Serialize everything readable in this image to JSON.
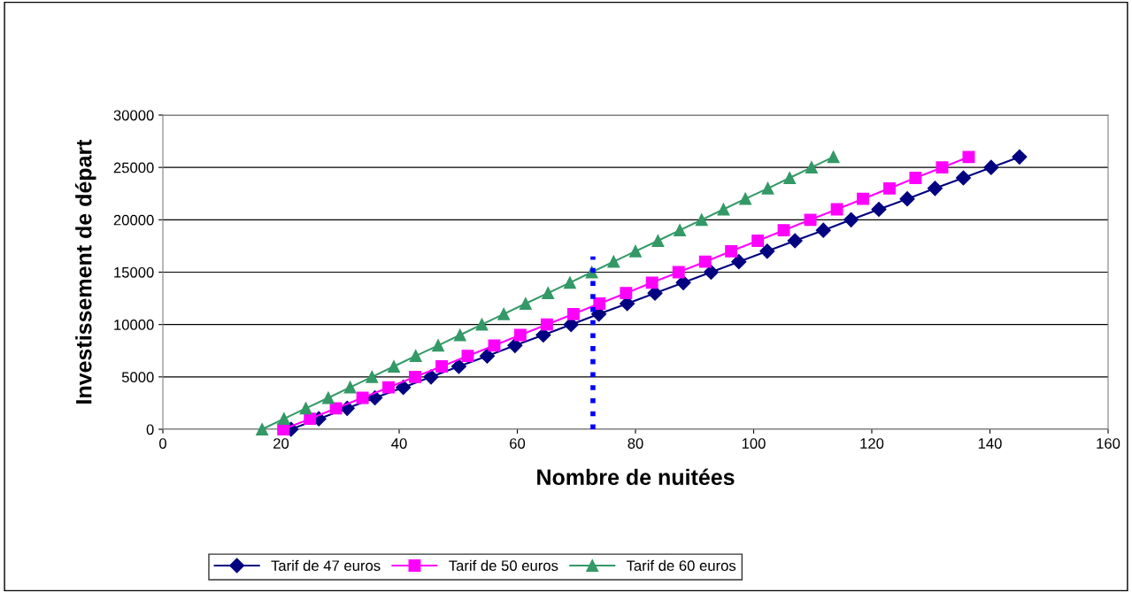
{
  "chart_data": {
    "type": "line",
    "xlabel": "Nombre de nuitées",
    "ylabel": "Investissement de départ",
    "xlim": [
      0,
      160
    ],
    "xticks": [
      0,
      20,
      40,
      60,
      80,
      100,
      120,
      140,
      160
    ],
    "ylim": [
      0,
      30000
    ],
    "yticks": [
      0,
      5000,
      10000,
      15000,
      20000,
      25000,
      30000
    ],
    "grid": "y",
    "legend": "bottom",
    "series": [
      {
        "name": "Tarif de 47 euros",
        "color": "#000080",
        "marker": "diamond",
        "x": [
          21.7,
          26.4,
          31.2,
          35.9,
          40.7,
          45.4,
          50.1,
          54.9,
          59.6,
          64.4,
          69.1,
          73.8,
          78.6,
          83.3,
          88.1,
          92.8,
          97.5,
          102.3,
          107.0,
          111.8,
          116.5,
          121.2,
          126.0,
          130.7,
          135.5,
          140.2,
          145.0
        ],
        "values": [
          0,
          1000,
          2000,
          3000,
          4000,
          5000,
          6000,
          7000,
          8000,
          9000,
          10000,
          11000,
          12000,
          13000,
          14000,
          15000,
          16000,
          17000,
          18000,
          19000,
          20000,
          21000,
          22000,
          23000,
          24000,
          25000,
          26000
        ]
      },
      {
        "name": "Tarif de 50 euros",
        "color": "#ff00ff",
        "marker": "square",
        "x": [
          20.4,
          24.9,
          29.3,
          33.8,
          38.2,
          42.7,
          47.2,
          51.6,
          56.1,
          60.5,
          65.0,
          69.5,
          73.9,
          78.4,
          82.8,
          87.3,
          91.8,
          96.2,
          100.7,
          105.1,
          109.6,
          114.1,
          118.5,
          123.0,
          127.4,
          131.9,
          136.4
        ],
        "values": [
          0,
          1000,
          2000,
          3000,
          4000,
          5000,
          6000,
          7000,
          8000,
          9000,
          10000,
          11000,
          12000,
          13000,
          14000,
          15000,
          16000,
          17000,
          18000,
          19000,
          20000,
          21000,
          22000,
          23000,
          24000,
          25000,
          26000
        ]
      },
      {
        "name": "Tarif de 60 euros",
        "color": "#339966",
        "marker": "triangle",
        "x": [
          16.8,
          20.5,
          24.2,
          28.0,
          31.7,
          35.4,
          39.1,
          42.8,
          46.6,
          50.3,
          54.0,
          57.7,
          61.4,
          65.2,
          68.9,
          72.6,
          76.3,
          80.0,
          83.8,
          87.5,
          91.2,
          94.9,
          98.6,
          102.4,
          106.1,
          109.8,
          113.5
        ],
        "values": [
          0,
          1000,
          2000,
          3000,
          4000,
          5000,
          6000,
          7000,
          8000,
          9000,
          10000,
          11000,
          12000,
          13000,
          14000,
          15000,
          16000,
          17000,
          18000,
          19000,
          20000,
          21000,
          22000,
          23000,
          24000,
          25000,
          26000
        ]
      },
      {
        "color": "#0000ff",
        "marker": "none",
        "line_style": "dotted",
        "x": [
          72.8,
          72.8
        ],
        "values": [
          0,
          16500
        ]
      }
    ]
  }
}
